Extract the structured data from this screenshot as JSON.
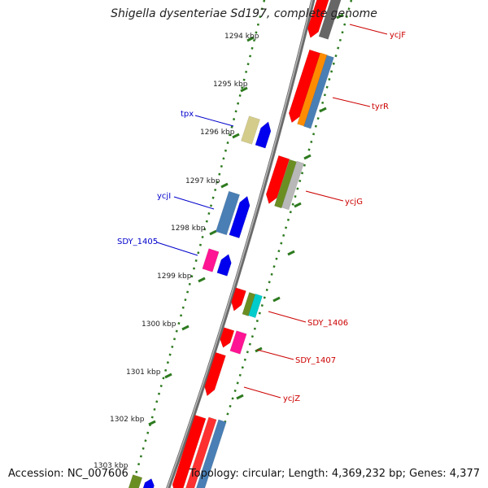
{
  "title": "Shigella dysenteriae Sd197, complete genome",
  "footer": {
    "accession": "Accession: NC_007606",
    "summary": "Topology: circular; Length: 4,369,232 bp; Genes: 4,377"
  },
  "kbp_labels": [
    "1294 kbp",
    "1295 kbp",
    "1296 kbp",
    "1297 kbp",
    "1298 kbp",
    "1299 kbp",
    "1300 kbp",
    "1301 kbp",
    "1302 kbp",
    "1303 kbp"
  ],
  "gene_labels_left": [
    "tpx",
    "ycjI",
    "SDY_1405"
  ],
  "gene_labels_right": [
    "ycjF",
    "tyrR",
    "ycjG",
    "SDY_1406",
    "SDY_1407",
    "ycjZ"
  ],
  "colors": {
    "backbone": "#808080",
    "ruler": "#2d7a1f",
    "left_label": "#0000cc",
    "right_label": "#cc0000"
  }
}
